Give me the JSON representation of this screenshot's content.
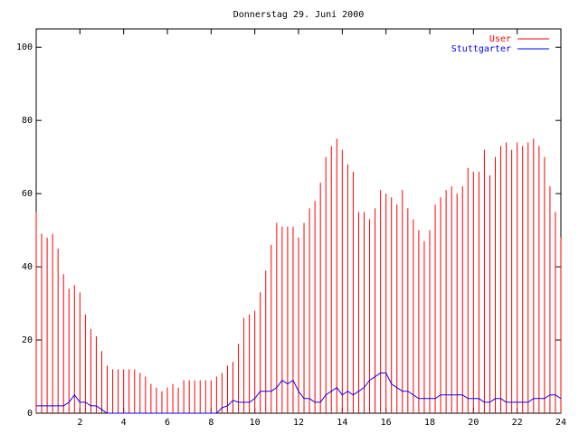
{
  "chart_data": {
    "type": "impulse-line",
    "title": "Donnerstag 29. Juni 2000",
    "x": [
      0,
      0.25,
      0.5,
      0.75,
      1,
      1.25,
      1.5,
      1.75,
      2,
      2.25,
      2.5,
      2.75,
      3,
      3.25,
      3.5,
      3.75,
      4,
      4.25,
      4.5,
      4.75,
      5,
      5.25,
      5.5,
      5.75,
      6,
      6.25,
      6.5,
      6.75,
      7,
      7.25,
      7.5,
      7.75,
      8,
      8.25,
      8.5,
      8.75,
      9,
      9.25,
      9.5,
      9.75,
      10,
      10.25,
      10.5,
      10.75,
      11,
      11.25,
      11.5,
      11.75,
      12,
      12.25,
      12.5,
      12.75,
      13,
      13.25,
      13.5,
      13.75,
      14,
      14.25,
      14.5,
      14.75,
      15,
      15.25,
      15.5,
      15.75,
      16,
      16.25,
      16.5,
      16.75,
      17,
      17.25,
      17.5,
      17.75,
      18,
      18.25,
      18.5,
      18.75,
      19,
      19.25,
      19.5,
      19.75,
      20,
      20.25,
      20.5,
      20.75,
      21,
      21.25,
      21.5,
      21.75,
      22,
      22.25,
      22.5,
      22.75,
      23,
      23.25,
      23.5,
      23.75,
      24
    ],
    "series": [
      {
        "name": "User",
        "color": "#ff0000",
        "style": "impulses",
        "values": [
          55,
          49,
          48,
          49,
          45,
          38,
          34,
          35,
          33,
          27,
          23,
          21,
          17,
          13,
          12,
          12,
          12,
          12,
          12,
          11,
          10,
          8,
          7,
          6,
          7,
          8,
          7,
          9,
          9,
          9,
          9,
          9,
          9,
          10,
          11,
          13,
          14,
          19,
          26,
          27,
          28,
          33,
          39,
          46,
          52,
          51,
          51,
          51,
          48,
          52,
          56,
          58,
          63,
          70,
          73,
          75,
          72,
          68,
          66,
          55,
          55,
          53,
          56,
          61,
          60,
          59,
          57,
          61,
          56,
          53,
          50,
          47,
          50,
          57,
          59,
          61,
          62,
          60,
          62,
          67,
          66,
          66,
          72,
          65,
          70,
          73,
          74,
          72,
          74,
          73,
          74,
          75,
          73,
          70,
          62,
          55,
          48
        ]
      },
      {
        "name": "Stuttgarter",
        "color": "#0000ff",
        "style": "line",
        "values": [
          2,
          2,
          2,
          2,
          2,
          2,
          3,
          5,
          3,
          3,
          2,
          2,
          1,
          0,
          0,
          0,
          0,
          0,
          0,
          0,
          0,
          0,
          0,
          0,
          0,
          0,
          0,
          0,
          0,
          0,
          0,
          0,
          0,
          0,
          1.5,
          2,
          3.5,
          3,
          3,
          3,
          4,
          6,
          6,
          6,
          7,
          9,
          8,
          9,
          6,
          4,
          4,
          3,
          3,
          5,
          6,
          7,
          5,
          6,
          5,
          6,
          7,
          9,
          10,
          11,
          11,
          8,
          7,
          6,
          6,
          5,
          4,
          4,
          4,
          4,
          5,
          5,
          5,
          5,
          5,
          4,
          4,
          4,
          3,
          3,
          4,
          4,
          3,
          3,
          3,
          3,
          3,
          4,
          4,
          4,
          5,
          5,
          4
        ]
      }
    ],
    "xlim": [
      0,
      24
    ],
    "xticks": [
      2,
      4,
      6,
      8,
      10,
      12,
      14,
      16,
      18,
      20,
      22,
      24
    ],
    "ylim": [
      0,
      105
    ],
    "yticks": [
      0,
      20,
      40,
      60,
      80,
      100
    ],
    "legend": "top-right"
  }
}
